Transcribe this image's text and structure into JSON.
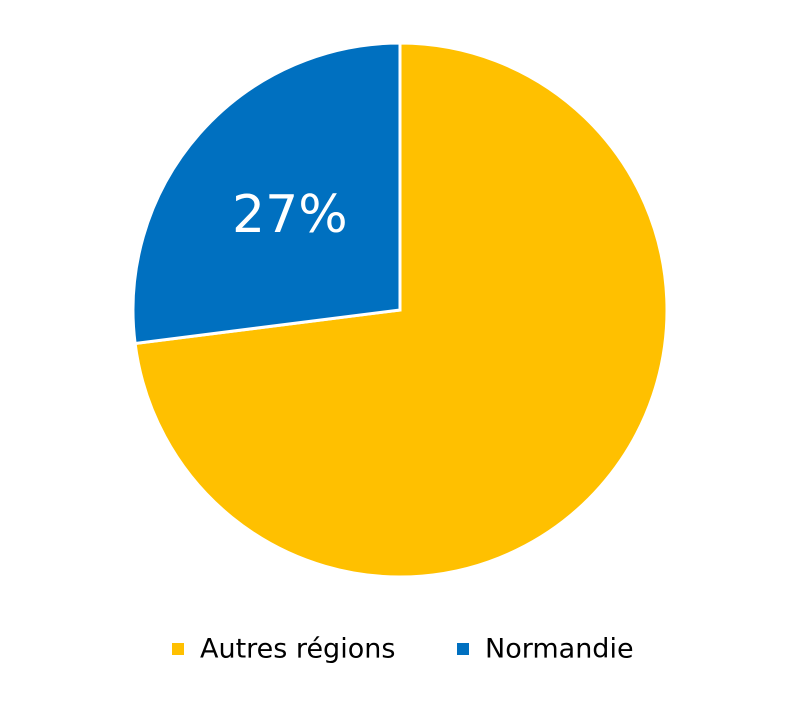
{
  "chart_data": {
    "type": "pie",
    "categories": [
      "Autres régions",
      "Normandie"
    ],
    "values": [
      73,
      27
    ],
    "value_labels": [
      null,
      "27%"
    ],
    "colors": [
      "#FFC000",
      "#0070C0"
    ],
    "legend": "bottom"
  }
}
